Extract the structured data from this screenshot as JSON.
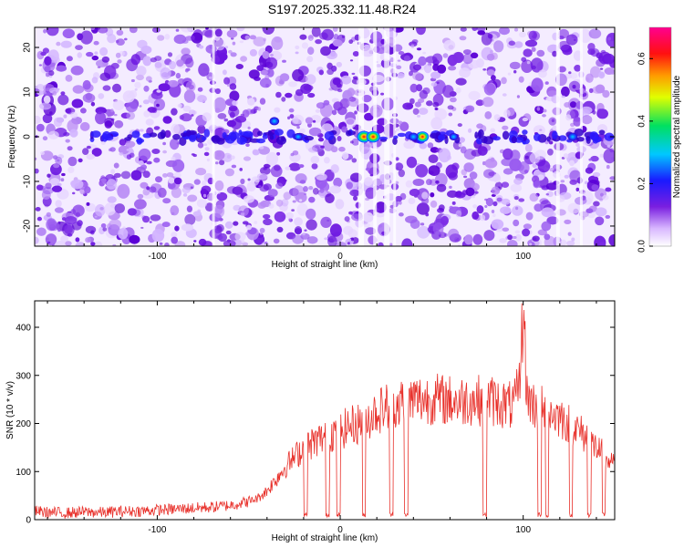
{
  "title": "S197.2025.332.11.48.R24",
  "colors": {
    "snr_line": "#e8302a",
    "frame": "#000000",
    "band": "#3300cc"
  },
  "chart_data": [
    {
      "type": "heatmap",
      "xlabel": "Height of straight line (km)",
      "ylabel": "Frequency (Hz)",
      "xlim": [
        -167,
        150
      ],
      "ylim": [
        -24.5,
        24.5
      ],
      "xticks": [
        -100,
        0,
        100
      ],
      "yticks": [
        -20,
        -10,
        0,
        10,
        20
      ],
      "colorbar": {
        "label": "Normalized spectral amplitude",
        "range": [
          0,
          0.7
        ],
        "ticks": [
          "0.0",
          "0.2",
          "0.4",
          "0.6"
        ],
        "tick_values": [
          0,
          0.2,
          0.4,
          0.6
        ],
        "colormap": "rainbow (white-purple-blue-cyan-green-yellow-red-magenta)"
      },
      "peaks": [
        {
          "x": 13,
          "y": 0,
          "amplitude": 0.68
        },
        {
          "x": 18,
          "y": 0,
          "amplitude": 0.66
        },
        {
          "x": 45,
          "y": 0,
          "amplitude": 0.55
        },
        {
          "x": 40,
          "y": 0,
          "amplitude": 0.3
        },
        {
          "x": -36,
          "y": 3.5,
          "amplitude": 0.3
        },
        {
          "x": 127,
          "y": 0,
          "amplitude": 0.3
        },
        {
          "x": 62,
          "y": 0,
          "amplitude": 0.2
        },
        {
          "x": -23,
          "y": 0,
          "amplitude": 0.2
        }
      ]
    },
    {
      "type": "line",
      "xlabel": "Height of straight line (km)",
      "ylabel": "SNR (10 * v/v)",
      "xlim": [
        -167,
        150
      ],
      "ylim": [
        0,
        455
      ],
      "xticks": [
        -100,
        0,
        100
      ],
      "yticks": [
        0,
        100,
        200,
        300,
        400
      ],
      "series": [
        {
          "x": [
            -167,
            -160,
            -150,
            -140,
            -130,
            -120,
            -110,
            -100,
            -90,
            -80,
            -70,
            -60,
            -50,
            -45,
            -40,
            -35,
            -30,
            -25,
            -20,
            -15,
            -10,
            -5,
            0,
            5,
            10,
            15,
            20,
            25,
            30,
            35,
            40,
            45,
            50,
            55,
            60,
            65,
            70,
            75,
            80,
            85,
            90,
            95,
            98,
            100,
            102,
            105,
            110,
            115,
            120,
            125,
            130,
            135,
            140,
            145,
            150
          ],
          "y": [
            18,
            15,
            14,
            16,
            15,
            17,
            18,
            20,
            22,
            24,
            26,
            30,
            38,
            45,
            60,
            85,
            110,
            130,
            150,
            160,
            170,
            180,
            185,
            195,
            200,
            210,
            225,
            235,
            240,
            245,
            250,
            250,
            252,
            250,
            248,
            245,
            250,
            248,
            250,
            245,
            240,
            235,
            280,
            440,
            260,
            240,
            230,
            220,
            215,
            200,
            185,
            170,
            150,
            130,
            110
          ]
        }
      ]
    }
  ]
}
